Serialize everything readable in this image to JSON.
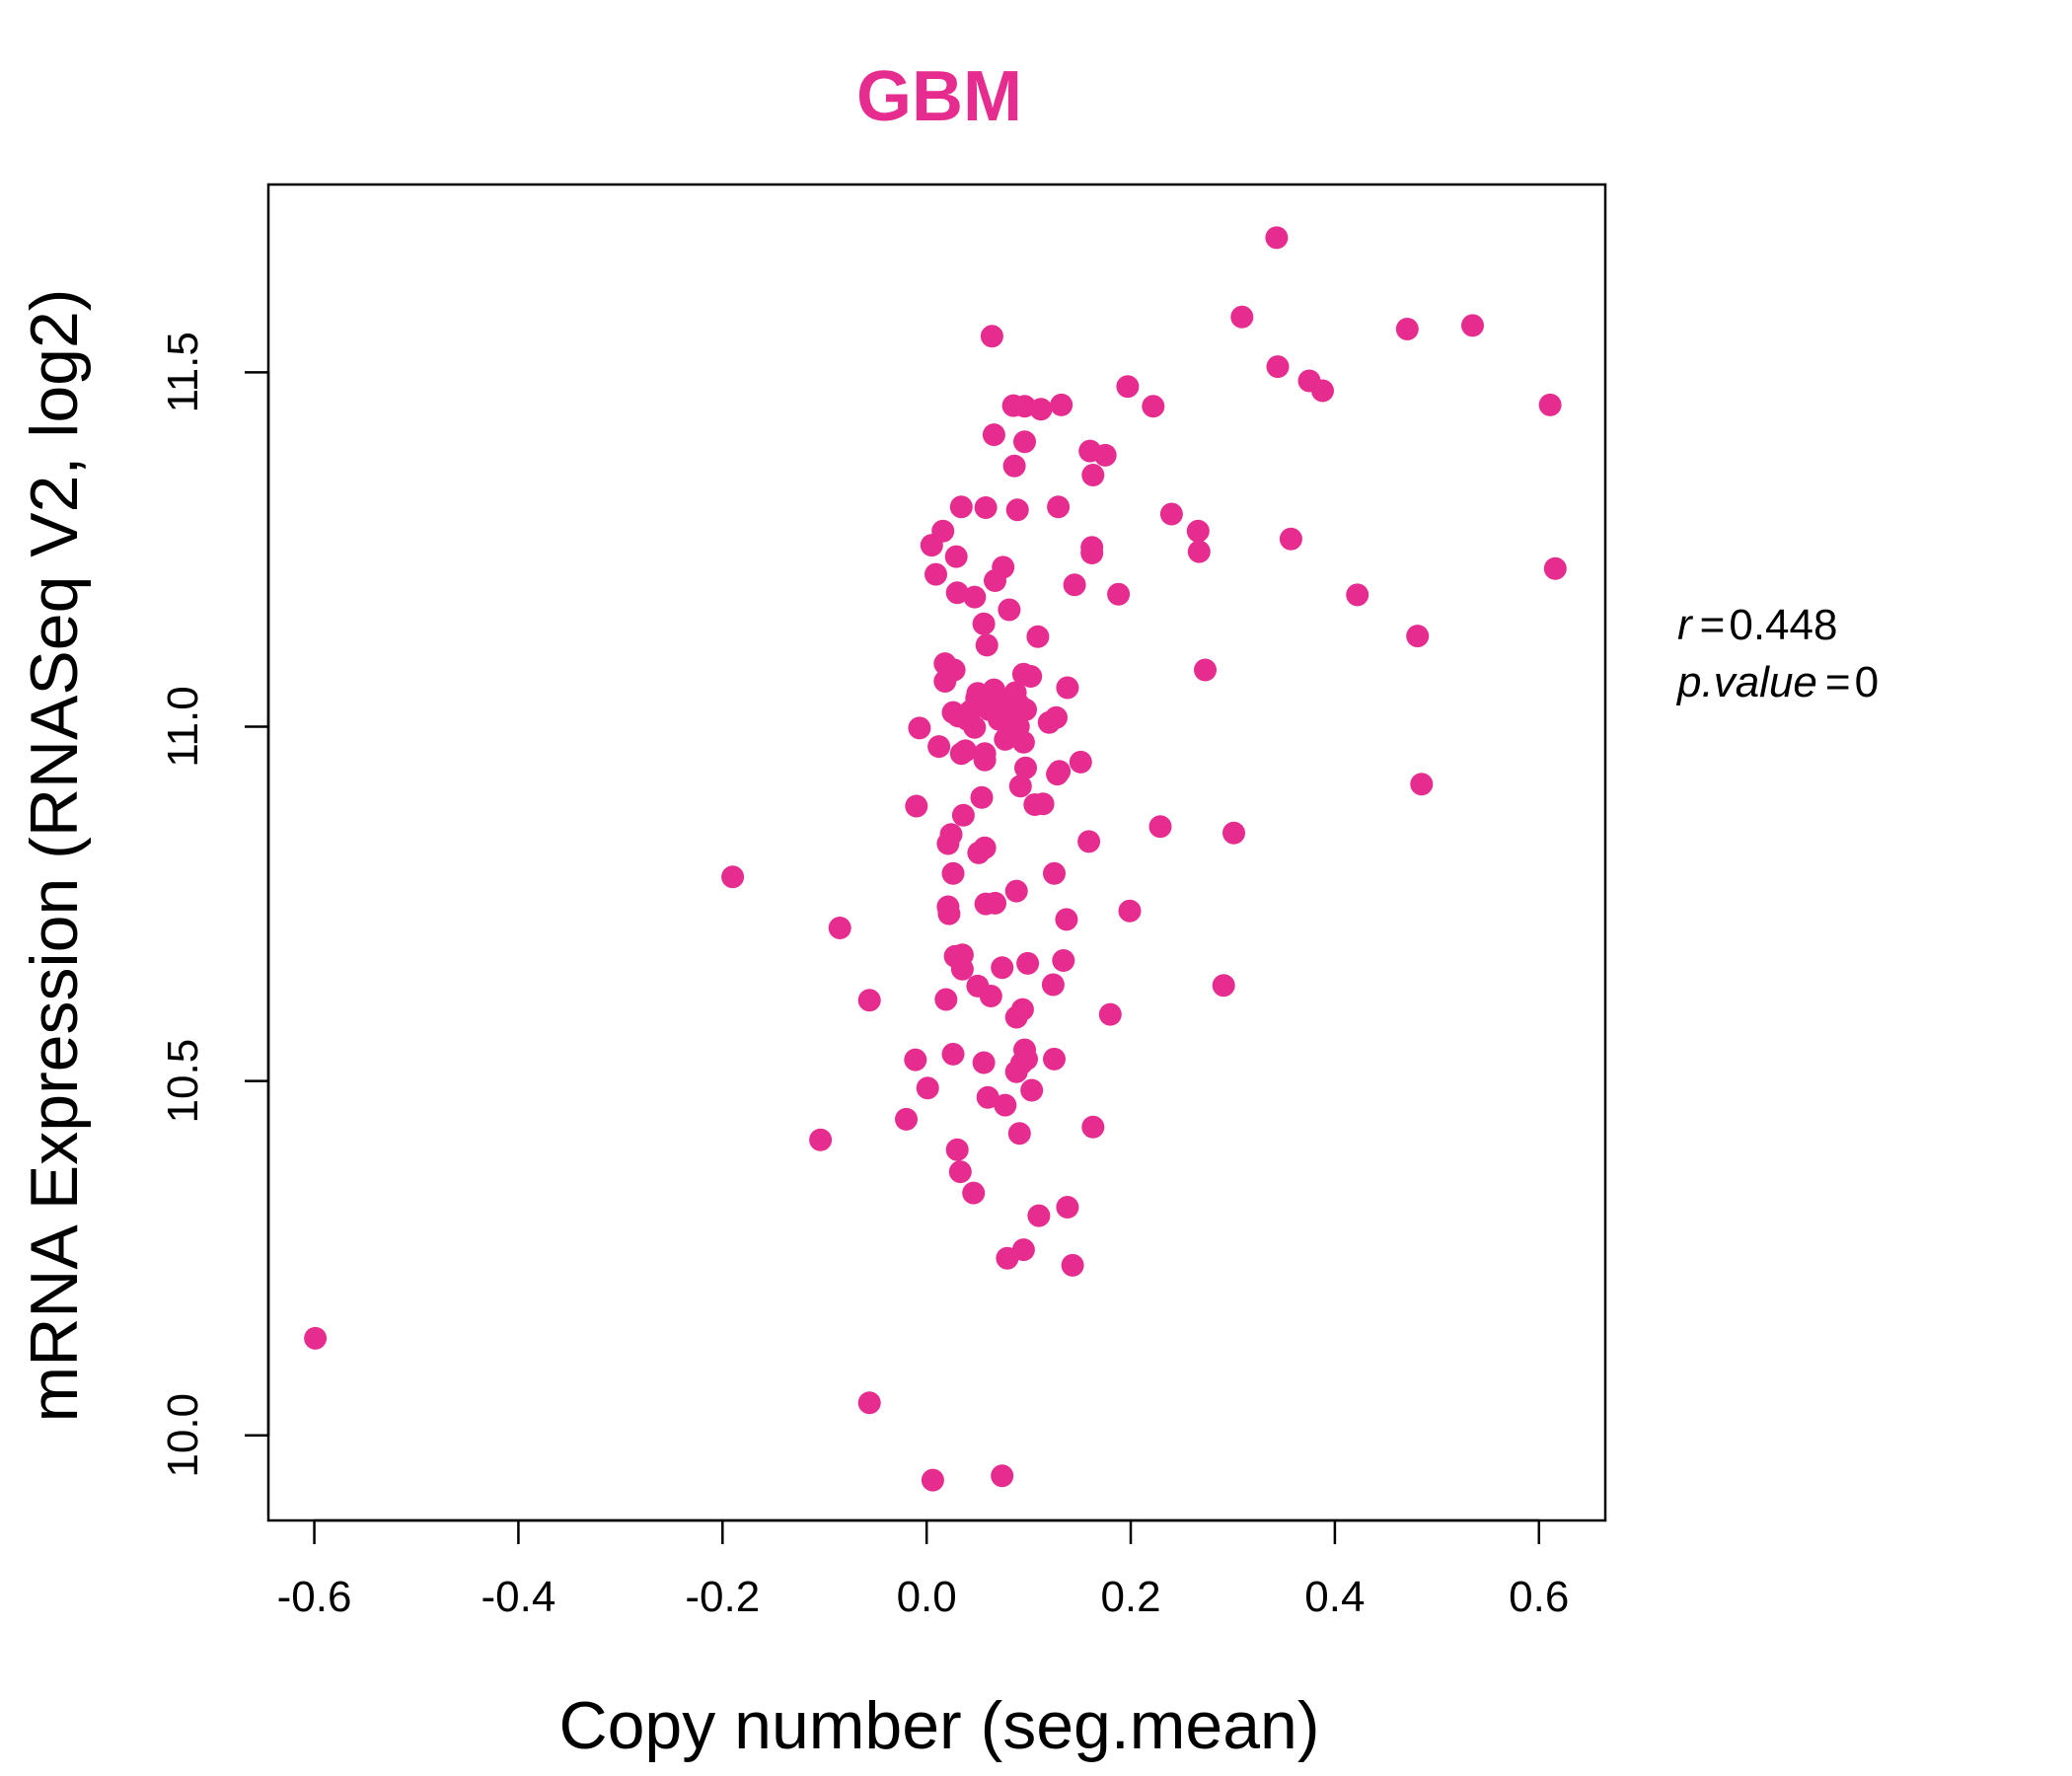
{
  "chart_data": {
    "type": "scatter",
    "title": "GBM",
    "xlabel": "Copy number (seg.mean)",
    "ylabel": "mRNA Expression (RNASeq V2, log2)",
    "xlim": [
      -0.645,
      0.665
    ],
    "ylim": [
      9.88,
      11.765
    ],
    "xticks": [
      -0.6,
      -0.4,
      -0.2,
      0.0,
      0.2,
      0.4,
      0.6
    ],
    "xtick_labels": [
      "-0.6",
      "-0.4",
      "-0.2",
      "0.0",
      "0.2",
      "0.4",
      "0.6"
    ],
    "yticks": [
      10.0,
      10.5,
      11.0,
      11.5
    ],
    "ytick_labels": [
      "10.0",
      "10.5",
      "11.0",
      "11.5"
    ],
    "grid": false,
    "colors": {
      "points": "#e62d8f",
      "title": "#e62d8f",
      "axes": "#000000"
    },
    "annotations": {
      "r_label": "r",
      "r_value": "0.448",
      "p_label": "p.value",
      "p_value": "0"
    },
    "points": [
      [
        -0.599,
        10.137
      ],
      [
        -0.19,
        10.788
      ],
      [
        -0.104,
        10.417
      ],
      [
        -0.085,
        10.716
      ],
      [
        -0.056,
        10.614
      ],
      [
        -0.056,
        10.046
      ],
      [
        -0.02,
        10.446
      ],
      [
        -0.011,
        10.53
      ],
      [
        -0.01,
        10.888
      ],
      [
        -0.007,
        10.998
      ],
      [
        0.001,
        10.49
      ],
      [
        0.005,
        11.256
      ],
      [
        0.006,
        9.937
      ],
      [
        0.009,
        11.215
      ],
      [
        0.012,
        10.972
      ],
      [
        0.016,
        11.276
      ],
      [
        0.018,
        11.064
      ],
      [
        0.018,
        11.089
      ],
      [
        0.019,
        10.615
      ],
      [
        0.021,
        10.835
      ],
      [
        0.021,
        10.746
      ],
      [
        0.022,
        10.736
      ],
      [
        0.024,
        10.848
      ],
      [
        0.026,
        10.793
      ],
      [
        0.026,
        10.538
      ],
      [
        0.026,
        11.02
      ],
      [
        0.027,
        11.08
      ],
      [
        0.028,
        10.676
      ],
      [
        0.029,
        11.24
      ],
      [
        0.03,
        10.403
      ],
      [
        0.03,
        11.189
      ],
      [
        0.031,
        11.015
      ],
      [
        0.033,
        10.372
      ],
      [
        0.034,
        11.31
      ],
      [
        0.034,
        10.962
      ],
      [
        0.035,
        10.678
      ],
      [
        0.035,
        10.658
      ],
      [
        0.036,
        10.875
      ],
      [
        0.038,
        10.966
      ],
      [
        0.04,
        11.01
      ],
      [
        0.043,
        11.022
      ],
      [
        0.046,
        10.342
      ],
      [
        0.047,
        10.999
      ],
      [
        0.047,
        11.183
      ],
      [
        0.049,
        11.04
      ],
      [
        0.05,
        11.047
      ],
      [
        0.05,
        10.634
      ],
      [
        0.051,
        10.822
      ],
      [
        0.054,
        10.9
      ],
      [
        0.056,
        11.145
      ],
      [
        0.056,
        10.526
      ],
      [
        0.057,
        10.953
      ],
      [
        0.057,
        10.829
      ],
      [
        0.057,
        10.962
      ],
      [
        0.058,
        11.309
      ],
      [
        0.058,
        10.75
      ],
      [
        0.059,
        11.115
      ],
      [
        0.06,
        10.477
      ],
      [
        0.061,
        11.024
      ],
      [
        0.063,
        10.62
      ],
      [
        0.064,
        11.551
      ],
      [
        0.066,
        11.052
      ],
      [
        0.066,
        11.412
      ],
      [
        0.067,
        11.206
      ],
      [
        0.067,
        10.751
      ],
      [
        0.07,
        11.035
      ],
      [
        0.071,
        11.01
      ],
      [
        0.074,
        9.943
      ],
      [
        0.074,
        10.66
      ],
      [
        0.075,
        11.225
      ],
      [
        0.077,
        10.982
      ],
      [
        0.077,
        10.466
      ],
      [
        0.079,
        10.25
      ],
      [
        0.079,
        11.033
      ],
      [
        0.08,
        10.985
      ],
      [
        0.081,
        11.165
      ],
      [
        0.083,
        11.02
      ],
      [
        0.085,
        11.453
      ],
      [
        0.086,
        11.368
      ],
      [
        0.086,
        10.991
      ],
      [
        0.087,
        11.048
      ],
      [
        0.088,
        10.768
      ],
      [
        0.088,
        10.513
      ],
      [
        0.088,
        10.59
      ],
      [
        0.089,
        11.306
      ],
      [
        0.09,
        11.032
      ],
      [
        0.09,
        11.0
      ],
      [
        0.091,
        10.426
      ],
      [
        0.091,
        11.023
      ],
      [
        0.092,
        10.916
      ],
      [
        0.093,
        10.525
      ],
      [
        0.094,
        10.601
      ],
      [
        0.095,
        11.074
      ],
      [
        0.095,
        10.262
      ],
      [
        0.095,
        10.978
      ],
      [
        0.096,
        11.452
      ],
      [
        0.096,
        11.402
      ],
      [
        0.096,
        10.544
      ],
      [
        0.097,
        11.024
      ],
      [
        0.097,
        10.942
      ],
      [
        0.098,
        10.531
      ],
      [
        0.099,
        10.666
      ],
      [
        0.102,
        11.071
      ],
      [
        0.103,
        10.487
      ],
      [
        0.106,
        10.89
      ],
      [
        0.109,
        11.127
      ],
      [
        0.11,
        10.31
      ],
      [
        0.112,
        11.448
      ],
      [
        0.114,
        10.891
      ],
      [
        0.12,
        11.006
      ],
      [
        0.124,
        10.636
      ],
      [
        0.125,
        10.531
      ],
      [
        0.125,
        10.793
      ],
      [
        0.127,
        11.013
      ],
      [
        0.128,
        10.933
      ],
      [
        0.129,
        11.31
      ],
      [
        0.13,
        10.937
      ],
      [
        0.132,
        11.454
      ],
      [
        0.134,
        10.67
      ],
      [
        0.137,
        10.728
      ],
      [
        0.138,
        10.322
      ],
      [
        0.138,
        11.055
      ],
      [
        0.143,
        10.24
      ],
      [
        0.145,
        11.2
      ],
      [
        0.151,
        10.95
      ],
      [
        0.159,
        10.838
      ],
      [
        0.16,
        11.389
      ],
      [
        0.162,
        11.253
      ],
      [
        0.162,
        11.245
      ],
      [
        0.163,
        10.435
      ],
      [
        0.163,
        11.355
      ],
      [
        0.175,
        11.383
      ],
      [
        0.18,
        10.594
      ],
      [
        0.188,
        11.187
      ],
      [
        0.197,
        11.48
      ],
      [
        0.199,
        10.74
      ],
      [
        0.222,
        11.452
      ],
      [
        0.229,
        10.859
      ],
      [
        0.24,
        11.3
      ],
      [
        0.266,
        11.276
      ],
      [
        0.267,
        11.247
      ],
      [
        0.273,
        11.08
      ],
      [
        0.291,
        10.635
      ],
      [
        0.301,
        10.85
      ],
      [
        0.309,
        11.578
      ],
      [
        0.343,
        11.69
      ],
      [
        0.344,
        11.508
      ],
      [
        0.357,
        11.265
      ],
      [
        0.375,
        11.488
      ],
      [
        0.388,
        11.474
      ],
      [
        0.422,
        11.186
      ],
      [
        0.471,
        11.561
      ],
      [
        0.481,
        11.128
      ],
      [
        0.485,
        10.919
      ],
      [
        0.535,
        11.566
      ],
      [
        0.611,
        11.454
      ],
      [
        0.616,
        11.223
      ]
    ]
  }
}
